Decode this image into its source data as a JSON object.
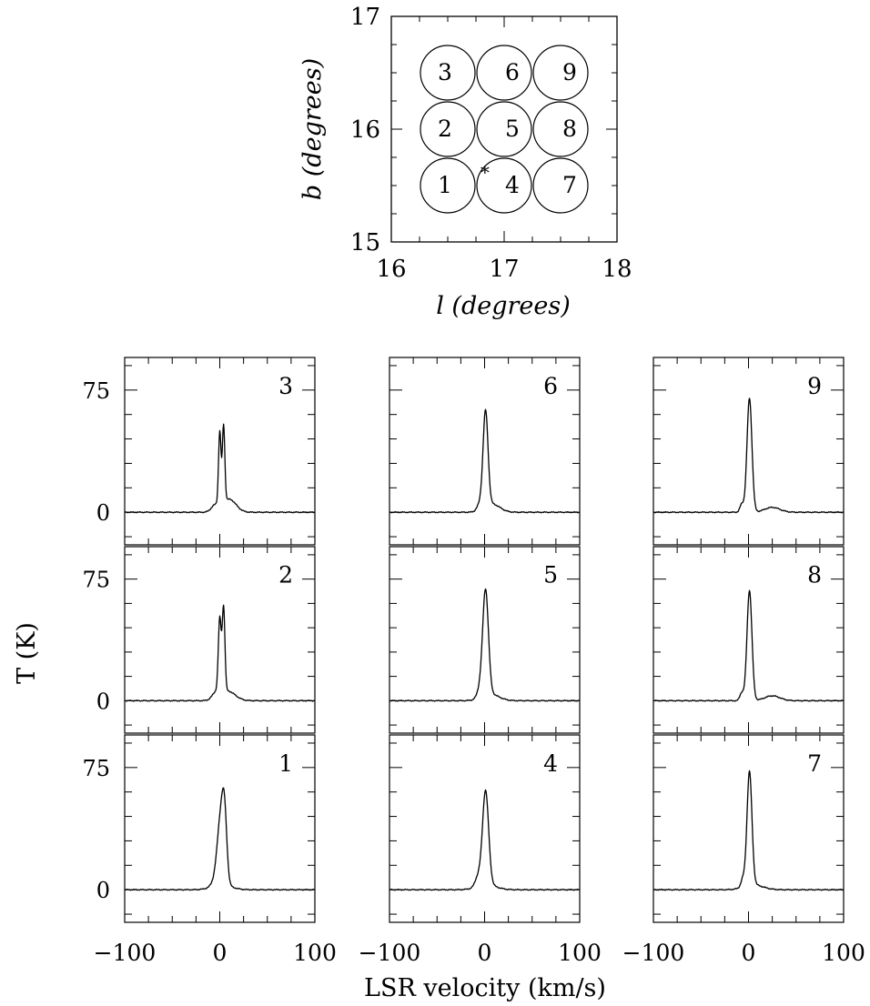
{
  "chart_data": [
    {
      "type": "map",
      "id": "pointing-map",
      "xlabel": "l (degrees)",
      "ylabel": "b (degrees)",
      "xlim": [
        16,
        18
      ],
      "ylim": [
        15,
        17
      ],
      "x_ticks": [
        "16",
        "17",
        "18"
      ],
      "y_ticks": [
        "15",
        "16",
        "17"
      ],
      "circle_diameter": 0.5,
      "circles": [
        {
          "label": "1",
          "l": 16.5,
          "b": 15.5
        },
        {
          "label": "2",
          "l": 16.5,
          "b": 16.0
        },
        {
          "label": "3",
          "l": 16.5,
          "b": 16.5
        },
        {
          "label": "4",
          "l": 17.0,
          "b": 15.5
        },
        {
          "label": "5",
          "l": 17.0,
          "b": 16.0
        },
        {
          "label": "6",
          "l": 17.0,
          "b": 16.5
        },
        {
          "label": "7",
          "l": 17.5,
          "b": 15.5
        },
        {
          "label": "8",
          "l": 17.5,
          "b": 16.0
        },
        {
          "label": "9",
          "l": 17.5,
          "b": 16.5
        }
      ],
      "marker": {
        "symbol": "*",
        "l": 16.83,
        "b": 15.64
      }
    },
    {
      "type": "line",
      "id": "spectra-grid",
      "xlabel": "LSR velocity (km/s)",
      "ylabel": "T (K)",
      "xlim": [
        -100,
        100
      ],
      "ylim": [
        -20,
        95
      ],
      "x_ticks": [
        "−100",
        "0",
        "100"
      ],
      "y_ticks": [
        "0",
        "75"
      ],
      "grid_rows": [
        [
          "3",
          "6",
          "9"
        ],
        [
          "2",
          "5",
          "8"
        ],
        [
          "1",
          "4",
          "7"
        ]
      ],
      "panels": {
        "1": {
          "peaks": [
            {
              "v": 1,
              "h": 38,
              "w": 3.5
            },
            {
              "v": 5,
              "h": 35,
              "w": 2.5
            }
          ],
          "wing": {
            "v": -4,
            "h": 4,
            "w": 4
          },
          "broad": {
            "v": 2,
            "h": 3,
            "w": 10
          }
        },
        "2": {
          "peaks": [
            {
              "v": 0,
              "h": 45,
              "w": 1.5
            },
            {
              "v": 4,
              "h": 52,
              "w": 1.4
            }
          ],
          "wing": {
            "v": -4,
            "h": 4,
            "w": 4
          },
          "broad": {
            "v": 8,
            "h": 6,
            "w": 8
          }
        },
        "3": {
          "peaks": [
            {
              "v": 0,
              "h": 45,
              "w": 1.3
            },
            {
              "v": 4,
              "h": 48,
              "w": 1.3
            }
          ],
          "wing": {
            "v": -5,
            "h": 4,
            "w": 4
          },
          "broad": {
            "v": 10,
            "h": 8,
            "w": 7
          }
        },
        "4": {
          "peaks": [
            {
              "v": 1,
              "h": 58,
              "w": 3.2
            }
          ],
          "wing": {
            "v": -7,
            "h": 6,
            "w": 3
          },
          "broad": {
            "v": 2,
            "h": 3,
            "w": 10
          }
        },
        "5": {
          "peaks": [
            {
              "v": 1,
              "h": 65,
              "w": 3.0
            }
          ],
          "wing": {
            "v": -5,
            "h": 5,
            "w": 3
          },
          "broad": {
            "v": 6,
            "h": 4,
            "w": 9
          }
        },
        "6": {
          "peaks": [
            {
              "v": 1,
              "h": 59,
              "w": 2.6
            }
          ],
          "wing": {
            "v": -5,
            "h": 4,
            "w": 3
          },
          "broad": {
            "v": 8,
            "h": 5,
            "w": 8
          }
        },
        "7": {
          "peaks": [
            {
              "v": 1,
              "h": 70,
              "w": 2.6
            }
          ],
          "wing": {
            "v": -6,
            "h": 5,
            "w": 2
          },
          "broad": {
            "v": 5,
            "h": 3,
            "w": 10
          }
        },
        "8": {
          "peaks": [
            {
              "v": 1,
              "h": 68,
              "w": 2.6
            }
          ],
          "wing": {
            "v": -7,
            "h": 5,
            "w": 2
          },
          "broad": {
            "v": 25,
            "h": 3,
            "w": 8
          }
        },
        "9": {
          "peaks": [
            {
              "v": 1,
              "h": 70,
              "w": 2.6
            }
          ],
          "wing": {
            "v": -7,
            "h": 5,
            "w": 2
          },
          "broad": {
            "v": 25,
            "h": 3,
            "w": 8
          }
        }
      }
    }
  ]
}
